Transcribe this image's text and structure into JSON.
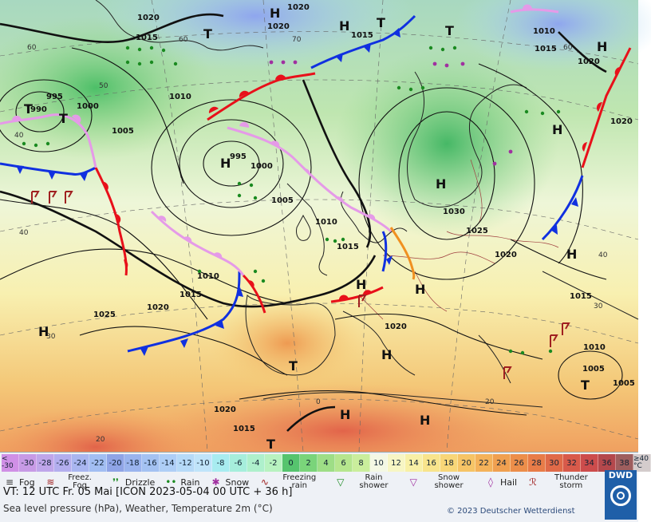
{
  "map": {
    "pressure_labels": [
      {
        "text": "1020"
      },
      {
        "text": "1020"
      },
      {
        "text": "1015"
      },
      {
        "text": "1015"
      },
      {
        "text": "1020"
      },
      {
        "text": "1010"
      },
      {
        "text": "1015"
      },
      {
        "text": "1020"
      },
      {
        "text": "995"
      },
      {
        "text": "1000"
      },
      {
        "text": "990"
      },
      {
        "text": "1005"
      },
      {
        "text": "1010"
      },
      {
        "text": "995"
      },
      {
        "text": "1000"
      },
      {
        "text": "1005"
      },
      {
        "text": "1010"
      },
      {
        "text": "1015"
      },
      {
        "text": "1030"
      },
      {
        "text": "1025"
      },
      {
        "text": "1020"
      },
      {
        "text": "1010"
      },
      {
        "text": "1015"
      },
      {
        "text": "1020"
      },
      {
        "text": "1025"
      },
      {
        "text": "1020"
      },
      {
        "text": "1015"
      },
      {
        "text": "1010"
      },
      {
        "text": "1005"
      },
      {
        "text": "1005"
      },
      {
        "text": "1020"
      },
      {
        "text": "1015"
      },
      {
        "text": "1020"
      }
    ],
    "centers": [
      {
        "text": "H"
      },
      {
        "text": "H"
      },
      {
        "text": "T"
      },
      {
        "text": "T"
      },
      {
        "text": "H"
      },
      {
        "text": "T"
      },
      {
        "text": "T"
      },
      {
        "text": "T"
      },
      {
        "text": "H"
      },
      {
        "text": "H"
      },
      {
        "text": "H"
      },
      {
        "text": "H"
      },
      {
        "text": "H"
      },
      {
        "text": "H"
      },
      {
        "text": "H"
      },
      {
        "text": "T"
      },
      {
        "text": "H"
      },
      {
        "text": "H"
      },
      {
        "text": "T"
      },
      {
        "text": "T"
      },
      {
        "text": "H"
      }
    ],
    "lat_labels": [
      {
        "text": "60"
      },
      {
        "text": "50"
      },
      {
        "text": "40"
      },
      {
        "text": "40"
      },
      {
        "text": "30"
      },
      {
        "text": "20"
      },
      {
        "text": "60"
      },
      {
        "text": "70"
      },
      {
        "text": "0"
      },
      {
        "text": "20"
      },
      {
        "text": "30"
      },
      {
        "text": "40"
      },
      {
        "text": "60"
      }
    ]
  },
  "legend": {
    "scale": [
      {
        "label": "< -30",
        "color": "#d090e6"
      },
      {
        "label": "-30",
        "color": "#c79ae6"
      },
      {
        "label": "-28",
        "color": "#bfa6ea"
      },
      {
        "label": "-26",
        "color": "#b3aeee"
      },
      {
        "label": "-24",
        "color": "#a9b6f0"
      },
      {
        "label": "-22",
        "color": "#a2bef2"
      },
      {
        "label": "-20",
        "color": "#8fa4e6"
      },
      {
        "label": "-18",
        "color": "#9ab4ee"
      },
      {
        "label": "-16",
        "color": "#a4c2f2"
      },
      {
        "label": "-14",
        "color": "#aecef6"
      },
      {
        "label": "-12",
        "color": "#b6daf8"
      },
      {
        "label": "-10",
        "color": "#c0e4fa"
      },
      {
        "label": "-8",
        "color": "#a8ecf0"
      },
      {
        "label": "-6",
        "color": "#a6eedc"
      },
      {
        "label": "-4",
        "color": "#aef0cc"
      },
      {
        "label": "-2",
        "color": "#b8f2c0"
      },
      {
        "label": "0",
        "color": "#56c46e"
      },
      {
        "label": "2",
        "color": "#7ad47a"
      },
      {
        "label": "4",
        "color": "#9ede86"
      },
      {
        "label": "6",
        "color": "#b6e68e"
      },
      {
        "label": "8",
        "color": "#caee9c"
      },
      {
        "label": "10",
        "color": "#f4f8e4"
      },
      {
        "label": "12",
        "color": "#f7f6c4"
      },
      {
        "label": "14",
        "color": "#f8f0a6"
      },
      {
        "label": "16",
        "color": "#f8e48c"
      },
      {
        "label": "18",
        "color": "#f8d678"
      },
      {
        "label": "20",
        "color": "#f6c466"
      },
      {
        "label": "22",
        "color": "#f4b25a"
      },
      {
        "label": "24",
        "color": "#f0a050"
      },
      {
        "label": "26",
        "color": "#ec8e4a"
      },
      {
        "label": "28",
        "color": "#e87c48"
      },
      {
        "label": "30",
        "color": "#e06a48"
      },
      {
        "label": "32",
        "color": "#d85a4a"
      },
      {
        "label": "34",
        "color": "#cc4c4c"
      },
      {
        "label": "36",
        "color": "#b4484c"
      },
      {
        "label": "38",
        "color": "#9e5e5e"
      },
      {
        "label": "≥40 °C",
        "color": "#d4cccc"
      }
    ],
    "weather": [
      {
        "label": "Fog",
        "icon": "fog-icon"
      },
      {
        "label": "Freez. Fog",
        "icon": "freezing-fog-icon"
      },
      {
        "label": "Drizzle",
        "icon": "drizzle-icon"
      },
      {
        "label": "Rain",
        "icon": "rain-icon"
      },
      {
        "label": "Snow",
        "icon": "snow-icon"
      },
      {
        "label": "Freezing rain",
        "icon": "freezing-rain-icon"
      },
      {
        "label": "Rain shower",
        "icon": "rain-shower-icon"
      },
      {
        "label": "Snow shower",
        "icon": "snow-shower-icon"
      },
      {
        "label": "Hail",
        "icon": "hail-icon"
      },
      {
        "label": "Thunder storm",
        "icon": "thunderstorm-icon"
      }
    ],
    "valid_time": "VT: 12 UTC Fr.  05 Mai [ICON 2023-05-04  00 UTC + 36 h]",
    "description": "Sea level pressure (hPa), Weather, Temperature 2m (°C)",
    "copyright": "© 2023 Deutscher Wetterdienst",
    "logo_text": "DWD"
  },
  "colors": {
    "warm_front": "#e8101a",
    "cold_front": "#1030e0",
    "occlusion": "#e59ae8",
    "trough": "#f09020",
    "isobar": "#111111"
  }
}
